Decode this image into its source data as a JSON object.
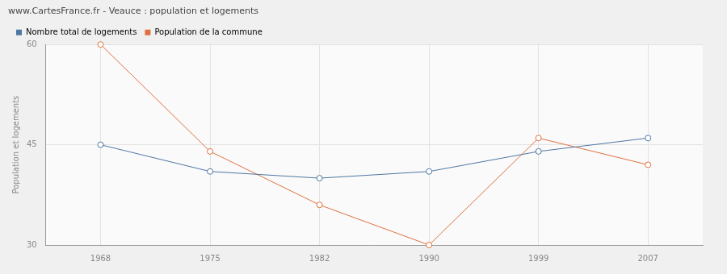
{
  "chart_data": {
    "type": "line",
    "title": "www.CartesFrance.fr - Veauce : population et logements",
    "y_label": "Population et logements",
    "categories": [
      "1968",
      "1975",
      "1982",
      "1990",
      "1999",
      "2007"
    ],
    "series": [
      {
        "name": "Nombre total de logements",
        "color": "#4f77a3",
        "values": [
          45,
          41,
          40,
          41,
          44,
          46
        ]
      },
      {
        "name": "Population de la commune",
        "color": "#e0713f",
        "values": [
          60,
          44,
          36,
          30,
          46,
          42
        ]
      }
    ],
    "ylim": [
      30,
      60
    ],
    "yticks": [
      30,
      45,
      60
    ],
    "grid": true,
    "legend": "top",
    "marker": "circle",
    "line_style": "solid"
  }
}
